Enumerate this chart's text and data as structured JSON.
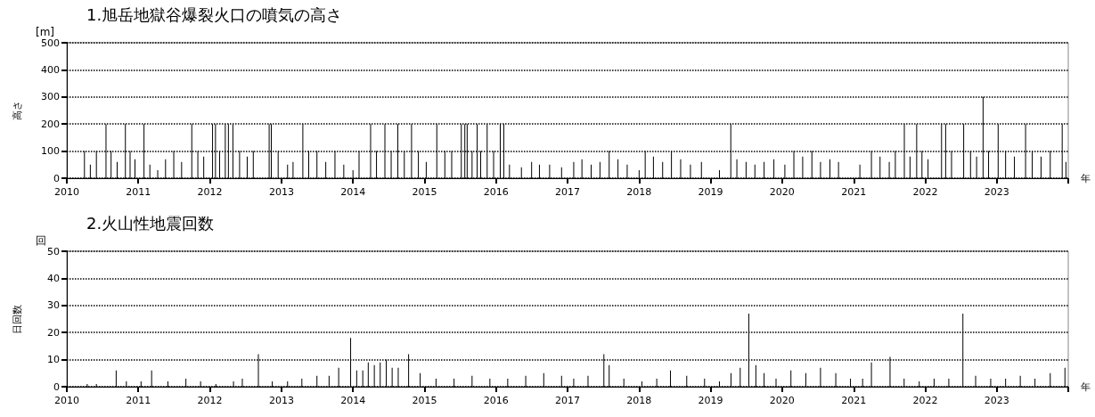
{
  "chart_data": [
    {
      "type": "bar",
      "title": "1.旭岳地獄谷爆裂火口の噴気の高さ",
      "ylabel": "高さ",
      "xlabel": "年",
      "annotations": [
        "[m]"
      ],
      "grid": "y",
      "xlim": [
        "2010-01-01",
        "2024-01-01"
      ],
      "xticks": [
        "2010",
        "2011",
        "2012",
        "2013",
        "2014",
        "2015",
        "2016",
        "2017",
        "2018",
        "2019",
        "2020",
        "2021",
        "2022",
        "2023",
        {
          "value": "2024",
          "label": null
        }
      ],
      "ylim": [
        0,
        500
      ],
      "yticks": [
        0,
        100,
        200,
        300,
        400,
        500
      ],
      "x": [
        "2010-04-01",
        "2010-05-01",
        "2010-06-01",
        "2010-07-20",
        "2010-08-15",
        "2010-09-15",
        "2010-10-27",
        "2010-11-20",
        "2010-12-15",
        "2011-01-30",
        "2011-03-01",
        "2011-04-10",
        "2011-05-20",
        "2011-07-01",
        "2011-08-10",
        "2011-10-01",
        "2011-11-01",
        "2011-12-01",
        "2012-01-15",
        "2012-01-30",
        "2012-02-20",
        "2012-03-20",
        "2012-04-05",
        "2012-04-28",
        "2012-06-01",
        "2012-07-10",
        "2012-08-10",
        "2012-10-30",
        "2012-11-10",
        "2012-12-15",
        "2013-02-01",
        "2013-03-01",
        "2013-04-20",
        "2013-05-20",
        "2013-07-01",
        "2013-08-15",
        "2013-10-01",
        "2013-11-15",
        "2014-01-01",
        "2014-02-01",
        "2014-04-01",
        "2014-05-01",
        "2014-06-13",
        "2014-07-15",
        "2014-08-18",
        "2014-09-20",
        "2014-10-27",
        "2014-12-01",
        "2015-01-10",
        "2015-03-05",
        "2015-04-15",
        "2015-05-20",
        "2015-07-08",
        "2015-07-26",
        "2015-08-07",
        "2015-09-01",
        "2015-09-27",
        "2015-10-15",
        "2015-11-17",
        "2015-12-20",
        "2016-01-23",
        "2016-02-10",
        "2016-03-10",
        "2016-05-10",
        "2016-07-01",
        "2016-08-10",
        "2016-10-01",
        "2016-12-01",
        "2017-02-01",
        "2017-03-15",
        "2017-05-01",
        "2017-06-15",
        "2017-08-01",
        "2017-09-15",
        "2017-11-01",
        "2018-01-01",
        "2018-02-01",
        "2018-03-15",
        "2018-05-01",
        "2018-06-15",
        "2018-08-01",
        "2018-09-20",
        "2018-11-15",
        "2019-02-15",
        "2019-04-14",
        "2019-05-15",
        "2019-07-01",
        "2019-08-15",
        "2019-10-01",
        "2019-11-20",
        "2020-01-15",
        "2020-03-01",
        "2020-04-15",
        "2020-06-01",
        "2020-07-15",
        "2020-09-01",
        "2020-10-15",
        "2021-02-01",
        "2021-04-01",
        "2021-05-15",
        "2021-07-01",
        "2021-08-01",
        "2021-09-16",
        "2021-10-15",
        "2021-11-18",
        "2021-12-15",
        "2022-01-15",
        "2022-03-25",
        "2022-04-15",
        "2022-05-15",
        "2022-07-16",
        "2022-08-20",
        "2022-09-20",
        "2022-10-23",
        "2022-11-20",
        "2023-01-08",
        "2023-02-15",
        "2023-04-01",
        "2023-05-28",
        "2023-07-01",
        "2023-08-15",
        "2023-10-01",
        "2023-12-01",
        "2023-12-20"
      ],
      "series": [
        {
          "color": "#000000",
          "values": [
            100,
            50,
            100,
            200,
            100,
            60,
            200,
            100,
            70,
            200,
            50,
            30,
            70,
            100,
            60,
            200,
            100,
            80,
            200,
            200,
            100,
            200,
            200,
            200,
            100,
            80,
            100,
            200,
            200,
            100,
            50,
            60,
            200,
            100,
            100,
            60,
            100,
            50,
            30,
            100,
            200,
            100,
            200,
            100,
            200,
            100,
            200,
            100,
            60,
            200,
            100,
            100,
            200,
            200,
            200,
            100,
            200,
            100,
            200,
            100,
            200,
            200,
            50,
            40,
            60,
            50,
            50,
            40,
            60,
            70,
            50,
            60,
            100,
            70,
            50,
            30,
            100,
            80,
            60,
            100,
            70,
            50,
            60,
            30,
            200,
            70,
            60,
            50,
            60,
            70,
            50,
            100,
            80,
            100,
            60,
            70,
            60,
            50,
            100,
            80,
            60,
            100,
            200,
            80,
            200,
            100,
            70,
            200,
            200,
            100,
            200,
            100,
            80,
            300,
            100,
            200,
            100,
            80,
            200,
            100,
            80,
            100,
            200,
            60
          ]
        }
      ]
    },
    {
      "type": "bar",
      "title": "2.火山性地震回数",
      "ylabel": "日回数",
      "xlabel": "年",
      "annotations": [
        "回"
      ],
      "grid": "y",
      "xlim": [
        "2010-01-01",
        "2024-01-01"
      ],
      "xticks": [
        "2010",
        "2011",
        "2012",
        "2013",
        "2014",
        "2015",
        "2016",
        "2017",
        "2018",
        "2019",
        "2020",
        "2021",
        "2022",
        "2023",
        {
          "value": "2024",
          "label": null
        }
      ],
      "ylim": [
        0,
        50
      ],
      "yticks": [
        0,
        10,
        20,
        30,
        40,
        50
      ],
      "x": [
        "2010-04-15",
        "2010-06-01",
        "2010-09-10",
        "2010-11-01",
        "2011-01-15",
        "2011-03-10",
        "2011-06-01",
        "2011-09-01",
        "2011-11-15",
        "2012-02-01",
        "2012-05-01",
        "2012-06-15",
        "2012-09-05",
        "2012-11-15",
        "2013-02-01",
        "2013-04-15",
        "2013-07-01",
        "2013-09-01",
        "2013-10-20",
        "2013-12-20",
        "2014-01-20",
        "2014-02-20",
        "2014-03-20",
        "2014-04-20",
        "2014-05-20",
        "2014-06-20",
        "2014-07-20",
        "2014-08-20",
        "2014-10-12",
        "2014-12-10",
        "2015-03-01",
        "2015-06-01",
        "2015-09-01",
        "2015-12-01",
        "2016-03-01",
        "2016-06-01",
        "2016-09-01",
        "2016-12-01",
        "2017-02-01",
        "2017-04-15",
        "2017-07-05",
        "2017-08-01",
        "2017-10-15",
        "2018-01-15",
        "2018-04-01",
        "2018-06-10",
        "2018-09-01",
        "2018-12-01",
        "2019-02-15",
        "2019-04-15",
        "2019-06-01",
        "2019-07-15",
        "2019-08-20",
        "2019-10-01",
        "2019-12-01",
        "2020-02-15",
        "2020-05-01",
        "2020-07-15",
        "2020-10-01",
        "2020-12-15",
        "2021-02-15",
        "2021-04-01",
        "2021-07-05",
        "2021-09-15",
        "2021-12-01",
        "2022-02-15",
        "2022-05-01",
        "2022-07-12",
        "2022-09-15",
        "2022-12-01",
        "2023-02-15",
        "2023-05-01",
        "2023-07-15",
        "2023-10-01",
        "2023-12-15"
      ],
      "series": [
        {
          "color": "#000000",
          "values": [
            1,
            1,
            6,
            2,
            2,
            6,
            2,
            3,
            2,
            1,
            2,
            3,
            12,
            2,
            2,
            3,
            4,
            4,
            7,
            18,
            6,
            6,
            9,
            8,
            9,
            10,
            7,
            7,
            12,
            5,
            3,
            3,
            4,
            3,
            3,
            4,
            5,
            4,
            3,
            4,
            12,
            8,
            3,
            2,
            3,
            6,
            4,
            3,
            2,
            5,
            7,
            27,
            8,
            5,
            3,
            6,
            5,
            7,
            5,
            3,
            3,
            9,
            11,
            3,
            2,
            3,
            3,
            27,
            4,
            3,
            3,
            4,
            3,
            5,
            7
          ]
        }
      ]
    }
  ]
}
